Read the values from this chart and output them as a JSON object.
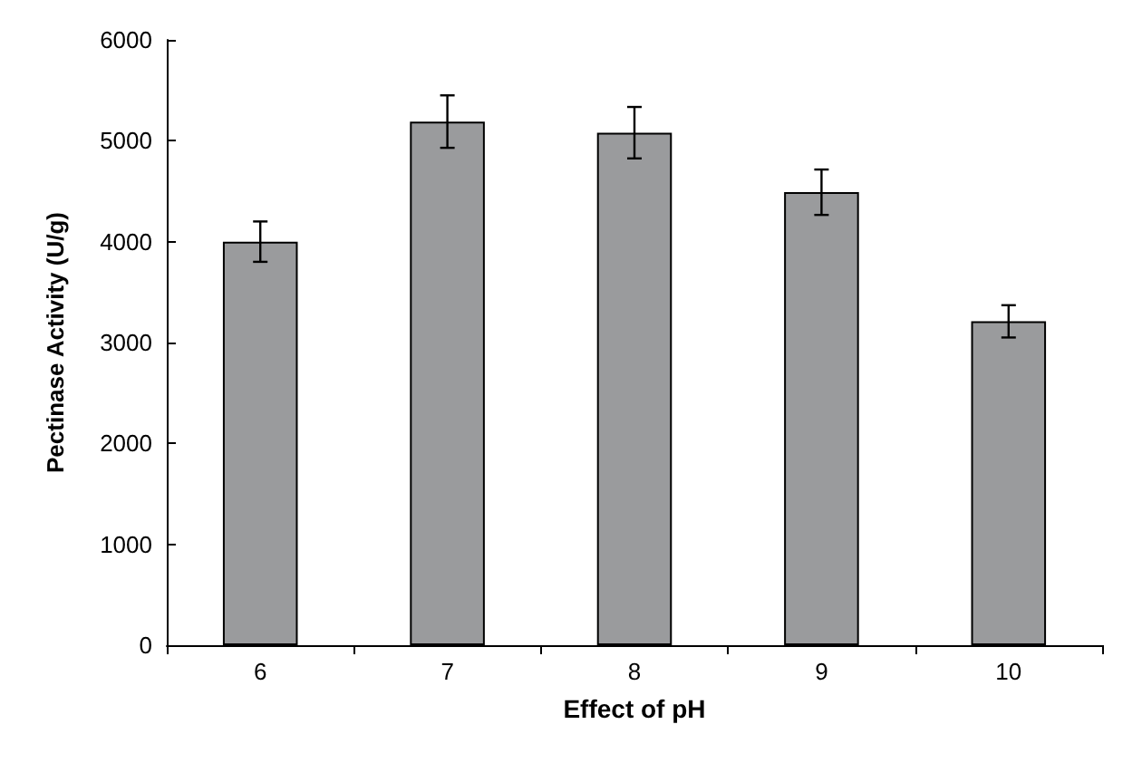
{
  "chart_data": {
    "type": "bar",
    "xlabel": "Effect of pH",
    "ylabel": "Pectinase Activity (U/g)",
    "categories": [
      "6",
      "7",
      "8",
      "9",
      "10"
    ],
    "series": [
      {
        "color": "#9a9b9d",
        "values": [
          4000,
          5190,
          5080,
          4490,
          3210
        ],
        "errors": [
          200,
          260,
          255,
          225,
          160
        ]
      }
    ],
    "ylim": [
      0,
      6000
    ],
    "yticks": [
      0,
      1000,
      2000,
      3000,
      4000,
      5000,
      6000
    ],
    "grid": false
  }
}
